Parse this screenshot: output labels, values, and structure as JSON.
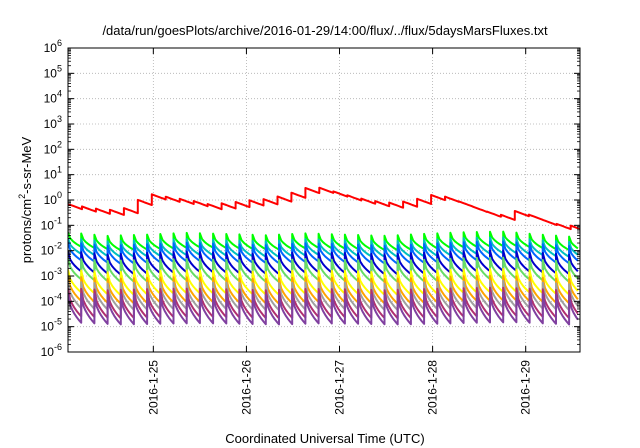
{
  "chart_data": {
    "type": "line",
    "title": "/data/run/goesPlots/archive/2016-01-29/14:00/flux/../flux/5daysMarsFluxes.txt",
    "xlabel": "Coordinated Universal Time (UTC)",
    "ylabel": {
      "pre": "protons/cm",
      "sup": "2",
      "post": "-s-sr-MeV"
    },
    "yscale": "log",
    "ylim": [
      1e-06,
      1000000.0
    ],
    "xlim": [
      "2016-01-24T02:00",
      "2016-01-29T14:00"
    ],
    "grid": true,
    "xticks": [
      {
        "date": "2016-01-25T00:00",
        "label": "2016-1-25"
      },
      {
        "date": "2016-01-26T00:00",
        "label": "2016-1-26"
      },
      {
        "date": "2016-01-27T00:00",
        "label": "2016-1-27"
      },
      {
        "date": "2016-01-28T00:00",
        "label": "2016-1-28"
      },
      {
        "date": "2016-01-29T00:00",
        "label": "2016-1-29"
      }
    ],
    "yticks": [
      {
        "value": 1e-06,
        "base": "10",
        "exp": "-6"
      },
      {
        "value": 1e-05,
        "base": "10",
        "exp": "-5"
      },
      {
        "value": 0.0001,
        "base": "10",
        "exp": "-4"
      },
      {
        "value": 0.001,
        "base": "10",
        "exp": "-3"
      },
      {
        "value": 0.01,
        "base": "10",
        "exp": "-2"
      },
      {
        "value": 0.1,
        "base": "10",
        "exp": "-1"
      },
      {
        "value": 1,
        "base": "10",
        "exp": "0"
      },
      {
        "value": 10.0,
        "base": "10",
        "exp": "1"
      },
      {
        "value": 100.0,
        "base": "10",
        "exp": "2"
      },
      {
        "value": 1000.0,
        "base": "10",
        "exp": "3"
      },
      {
        "value": 10000.0,
        "base": "10",
        "exp": "4"
      },
      {
        "value": 100000.0,
        "base": "10",
        "exp": "5"
      },
      {
        "value": 1000000.0,
        "base": "10",
        "exp": "6"
      }
    ],
    "series": [
      {
        "color": "#ff0000",
        "style": "trend",
        "x": [
          "2016-01-24T02:00",
          "2016-01-24T08:00",
          "2016-01-24T12:00",
          "2016-01-24T16:00",
          "2016-01-24T20:00",
          "2016-01-25T00:00",
          "2016-01-25T04:00",
          "2016-01-25T09:00",
          "2016-01-25T14:00",
          "2016-01-25T19:00",
          "2016-01-26T00:00",
          "2016-01-26T06:00",
          "2016-01-26T12:00",
          "2016-01-26T16:00",
          "2016-01-26T19:00",
          "2016-01-26T22:00",
          "2016-01-27T03:00",
          "2016-01-27T08:00",
          "2016-01-27T14:00",
          "2016-01-27T19:00",
          "2016-01-28T00:00",
          "2016-01-28T03:00",
          "2016-01-28T08:00",
          "2016-01-28T13:00",
          "2016-01-28T18:00",
          "2016-01-28T22:00",
          "2016-01-29T03:00",
          "2016-01-29T08:00",
          "2016-01-29T14:00"
        ],
        "y": [
          0.55,
          0.38,
          0.32,
          0.35,
          0.8,
          1.4,
          1.0,
          0.8,
          0.55,
          0.6,
          0.75,
          0.9,
          1.6,
          2.6,
          2.4,
          1.8,
          1.1,
          0.75,
          0.6,
          0.8,
          1.3,
          1.1,
          0.6,
          0.3,
          0.2,
          0.32,
          0.15,
          0.09,
          0.07
        ],
        "amp": 1.6,
        "period_h": 3.6
      },
      {
        "color": "#00ff00",
        "style": "sawtooth",
        "y": [
          0.022,
          0.016,
          0.018,
          0.021,
          0.019,
          0.017,
          0.02,
          0.018,
          0.016,
          0.019,
          0.022,
          0.024,
          0.018,
          0.014
        ],
        "amp": 2.4,
        "period_h": 3.4
      },
      {
        "color": "#00c0c0",
        "style": "sawtooth",
        "y": [
          0.012,
          0.009,
          0.01,
          0.011,
          0.01,
          0.009,
          0.011,
          0.01,
          0.009,
          0.01,
          0.012,
          0.013,
          0.01,
          0.008
        ],
        "amp": 2.6,
        "period_h": 3.4
      },
      {
        "color": "#0066ff",
        "style": "sawtooth",
        "y": [
          0.0072,
          0.0052,
          0.006,
          0.0068,
          0.006,
          0.0055,
          0.0065,
          0.006,
          0.0052,
          0.006,
          0.0072,
          0.0078,
          0.006,
          0.0048
        ],
        "amp": 3.0,
        "period_h": 3.4
      },
      {
        "color": "#0000cc",
        "style": "sawtooth",
        "y": [
          0.0028,
          0.0021,
          0.0024,
          0.0027,
          0.0024,
          0.0022,
          0.0026,
          0.0024,
          0.0021,
          0.0024,
          0.0028,
          0.003,
          0.0024,
          0.0019
        ],
        "amp": 3.4,
        "period_h": 3.4
      },
      {
        "color": "#66dd66",
        "style": "sawtooth",
        "y": [
          0.0014,
          0.0011,
          0.0012,
          0.0013,
          0.0012,
          0.0011,
          0.0013,
          0.0012,
          0.0011,
          0.0012,
          0.0014,
          0.0015,
          0.0012,
          0.001
        ],
        "amp": 3.6,
        "period_h": 3.4
      },
      {
        "color": "#ffff00",
        "style": "sawtooth",
        "y": [
          0.00045,
          0.00035,
          0.0004,
          0.00042,
          0.0004,
          0.00036,
          0.00042,
          0.0004,
          0.00035,
          0.0004,
          0.00045,
          0.00048,
          0.0004,
          0.00033
        ],
        "amp": 4.0,
        "period_h": 3.4
      },
      {
        "color": "#ffa500",
        "style": "sawtooth",
        "y": [
          0.00022,
          0.00017,
          0.00019,
          0.0002,
          0.00019,
          0.00017,
          0.0002,
          0.00019,
          0.00017,
          0.00019,
          0.00022,
          0.00023,
          0.00019,
          0.00016
        ],
        "amp": 4.5,
        "period_h": 3.4
      },
      {
        "color": "#a0a0a0",
        "style": "sawtooth",
        "y": [
          0.00012,
          0.0001,
          0.00011,
          0.00011,
          0.00011,
          0.0001,
          0.00011,
          0.00011,
          0.0001,
          0.00011,
          0.00012,
          0.00013,
          0.00011,
          9e-05
        ],
        "amp": 5.0,
        "period_h": 3.4
      },
      {
        "color": "#b03070",
        "style": "sawtooth",
        "y": [
          6e-05,
          5e-05,
          5.5e-05,
          5.8e-05,
          5.5e-05,
          5e-05,
          5.6e-05,
          5.5e-05,
          5e-05,
          5.5e-05,
          6e-05,
          6.3e-05,
          5.5e-05,
          4.5e-05
        ],
        "amp": 5.5,
        "period_h": 3.4
      },
      {
        "color": "#8040a0",
        "style": "sawtooth",
        "y": [
          3.5e-05,
          3e-05,
          3.2e-05,
          3.4e-05,
          3.2e-05,
          3e-05,
          3.3e-05,
          3.2e-05,
          3e-05,
          3.2e-05,
          3.5e-05,
          3.7e-05,
          3.2e-05,
          2.7e-05
        ],
        "amp": 6.0,
        "period_h": 3.4
      }
    ]
  }
}
